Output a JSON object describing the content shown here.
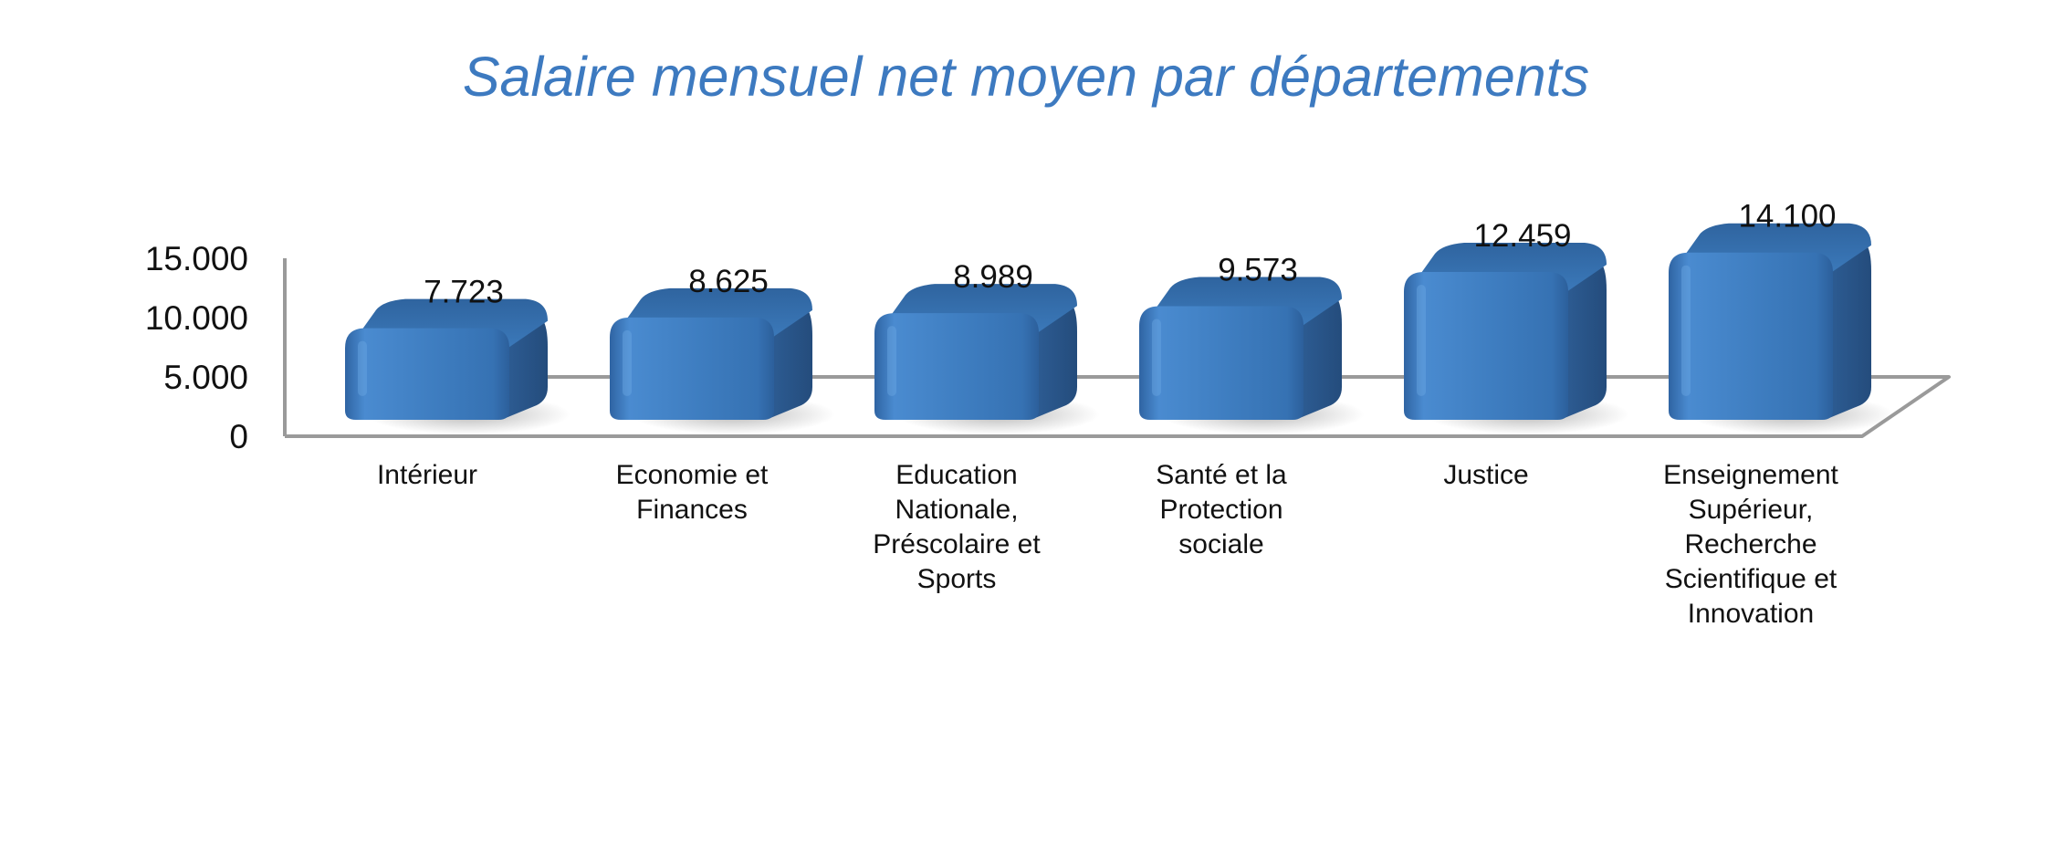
{
  "chart_data": {
    "type": "bar",
    "title": "Salaire mensuel net moyen par départements",
    "xlabel": "",
    "ylabel": "",
    "ylim": [
      0,
      15000
    ],
    "y_ticks": [
      0,
      5000,
      10000,
      15000
    ],
    "y_tick_labels": [
      "0",
      "5.000",
      "10.000",
      "15.000"
    ],
    "categories": [
      "Intérieur",
      "Economie et Finances",
      "Education Nationale, Préscolaire et Sports",
      "Santé et la Protection sociale",
      "Justice",
      "Enseignement Supérieur, Recherche Scientifique et Innovation"
    ],
    "category_lines": [
      [
        "Intérieur"
      ],
      [
        "Economie et",
        "Finances"
      ],
      [
        "Education",
        "Nationale,",
        "Préscolaire et",
        "Sports"
      ],
      [
        "Santé et la",
        "Protection",
        "sociale"
      ],
      [
        "Justice"
      ],
      [
        "Enseignement",
        "Supérieur,",
        "Recherche",
        "Scientifique et",
        "Innovation"
      ]
    ],
    "values": [
      7723,
      8625,
      8989,
      9573,
      12459,
      14100
    ],
    "value_labels": [
      "7.723",
      "8.625",
      "8.989",
      "9.573",
      "12.459",
      "14.100"
    ],
    "legend": false,
    "grid": false,
    "three_d": true
  },
  "colors": {
    "title": "#3d7ac0",
    "bar_front": "#3f7fc0",
    "bar_side": "#2a5689",
    "bar_top": "#3a74b3",
    "axis": "#9a9a9a",
    "text": "#111111"
  }
}
